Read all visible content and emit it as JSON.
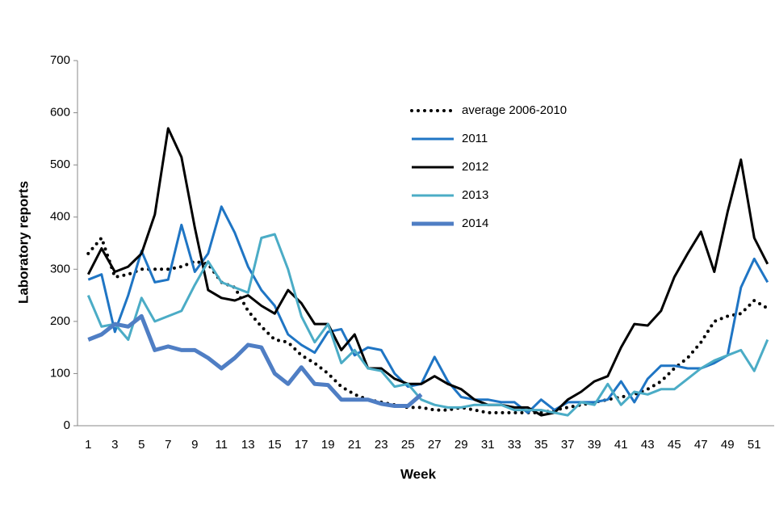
{
  "chart_data": {
    "type": "line",
    "x_label": "Week",
    "y_label": "Laboratory reports",
    "categories": [
      1,
      null,
      3,
      null,
      5,
      null,
      7,
      null,
      9,
      null,
      11,
      null,
      13,
      null,
      15,
      null,
      17,
      null,
      19,
      null,
      21,
      null,
      23,
      null,
      25,
      null,
      27,
      null,
      29,
      null,
      31,
      null,
      33,
      null,
      35,
      null,
      37,
      null,
      39,
      null,
      41,
      null,
      43,
      null,
      45,
      null,
      47,
      null,
      49,
      null,
      51,
      null
    ],
    "ylim": [
      0,
      700
    ],
    "yticks": [
      0,
      100,
      200,
      300,
      400,
      500,
      600,
      700
    ],
    "legend": "upper center",
    "series": [
      {
        "name": "average 2006-2010",
        "color": "#000000",
        "style": "dotted",
        "width": 4,
        "values": [
          330,
          360,
          285,
          290,
          300,
          300,
          300,
          305,
          315,
          310,
          275,
          265,
          220,
          190,
          165,
          160,
          135,
          120,
          100,
          75,
          60,
          50,
          45,
          40,
          35,
          35,
          30,
          30,
          35,
          30,
          25,
          25,
          25,
          25,
          25,
          30,
          35,
          40,
          45,
          50,
          55,
          60,
          70,
          85,
          110,
          130,
          160,
          200,
          210,
          215,
          240,
          225
        ]
      },
      {
        "name": "2011",
        "color": "#1f75c4",
        "style": "solid",
        "width": 3,
        "values": [
          280,
          290,
          180,
          250,
          335,
          275,
          280,
          385,
          295,
          330,
          420,
          370,
          305,
          260,
          230,
          175,
          155,
          140,
          180,
          185,
          135,
          150,
          145,
          100,
          75,
          80,
          132,
          85,
          55,
          50,
          50,
          45,
          45,
          25,
          50,
          30,
          45,
          45,
          45,
          50,
          85,
          45,
          90,
          115,
          115,
          110,
          110,
          120,
          135,
          265,
          320,
          275
        ]
      },
      {
        "name": "2012",
        "color": "#000000",
        "style": "solid",
        "width": 3,
        "values": [
          290,
          340,
          295,
          305,
          330,
          405,
          570,
          515,
          380,
          260,
          245,
          240,
          250,
          230,
          215,
          260,
          235,
          195,
          195,
          145,
          175,
          110,
          110,
          90,
          80,
          80,
          95,
          80,
          70,
          50,
          40,
          40,
          35,
          35,
          20,
          25,
          50,
          65,
          85,
          95,
          150,
          195,
          192,
          220,
          285,
          330,
          372,
          295,
          410,
          510,
          360,
          310
        ]
      },
      {
        "name": "2013",
        "color": "#4bacc6",
        "style": "solid",
        "width": 3,
        "values": [
          250,
          190,
          195,
          165,
          245,
          200,
          210,
          220,
          270,
          315,
          275,
          265,
          255,
          360,
          367,
          300,
          210,
          160,
          195,
          120,
          145,
          110,
          105,
          75,
          80,
          50,
          40,
          35,
          35,
          40,
          40,
          40,
          30,
          30,
          30,
          25,
          20,
          45,
          40,
          80,
          40,
          65,
          60,
          70,
          70,
          90,
          110,
          125,
          135,
          145,
          105,
          165
        ]
      },
      {
        "name": "2014",
        "color": "#4f7ec4",
        "style": "solid",
        "width": 5,
        "values": [
          165,
          175,
          195,
          190,
          210,
          145,
          152,
          145,
          145,
          130,
          110,
          130,
          155,
          150,
          100,
          80,
          112,
          80,
          78,
          50,
          50,
          50,
          42,
          38,
          38,
          60,
          null,
          null,
          null,
          null,
          null,
          null,
          null,
          null,
          null,
          null,
          null,
          null,
          null,
          null,
          null,
          null,
          null,
          null,
          null,
          null,
          null,
          null,
          null,
          null,
          null,
          null
        ]
      }
    ]
  }
}
